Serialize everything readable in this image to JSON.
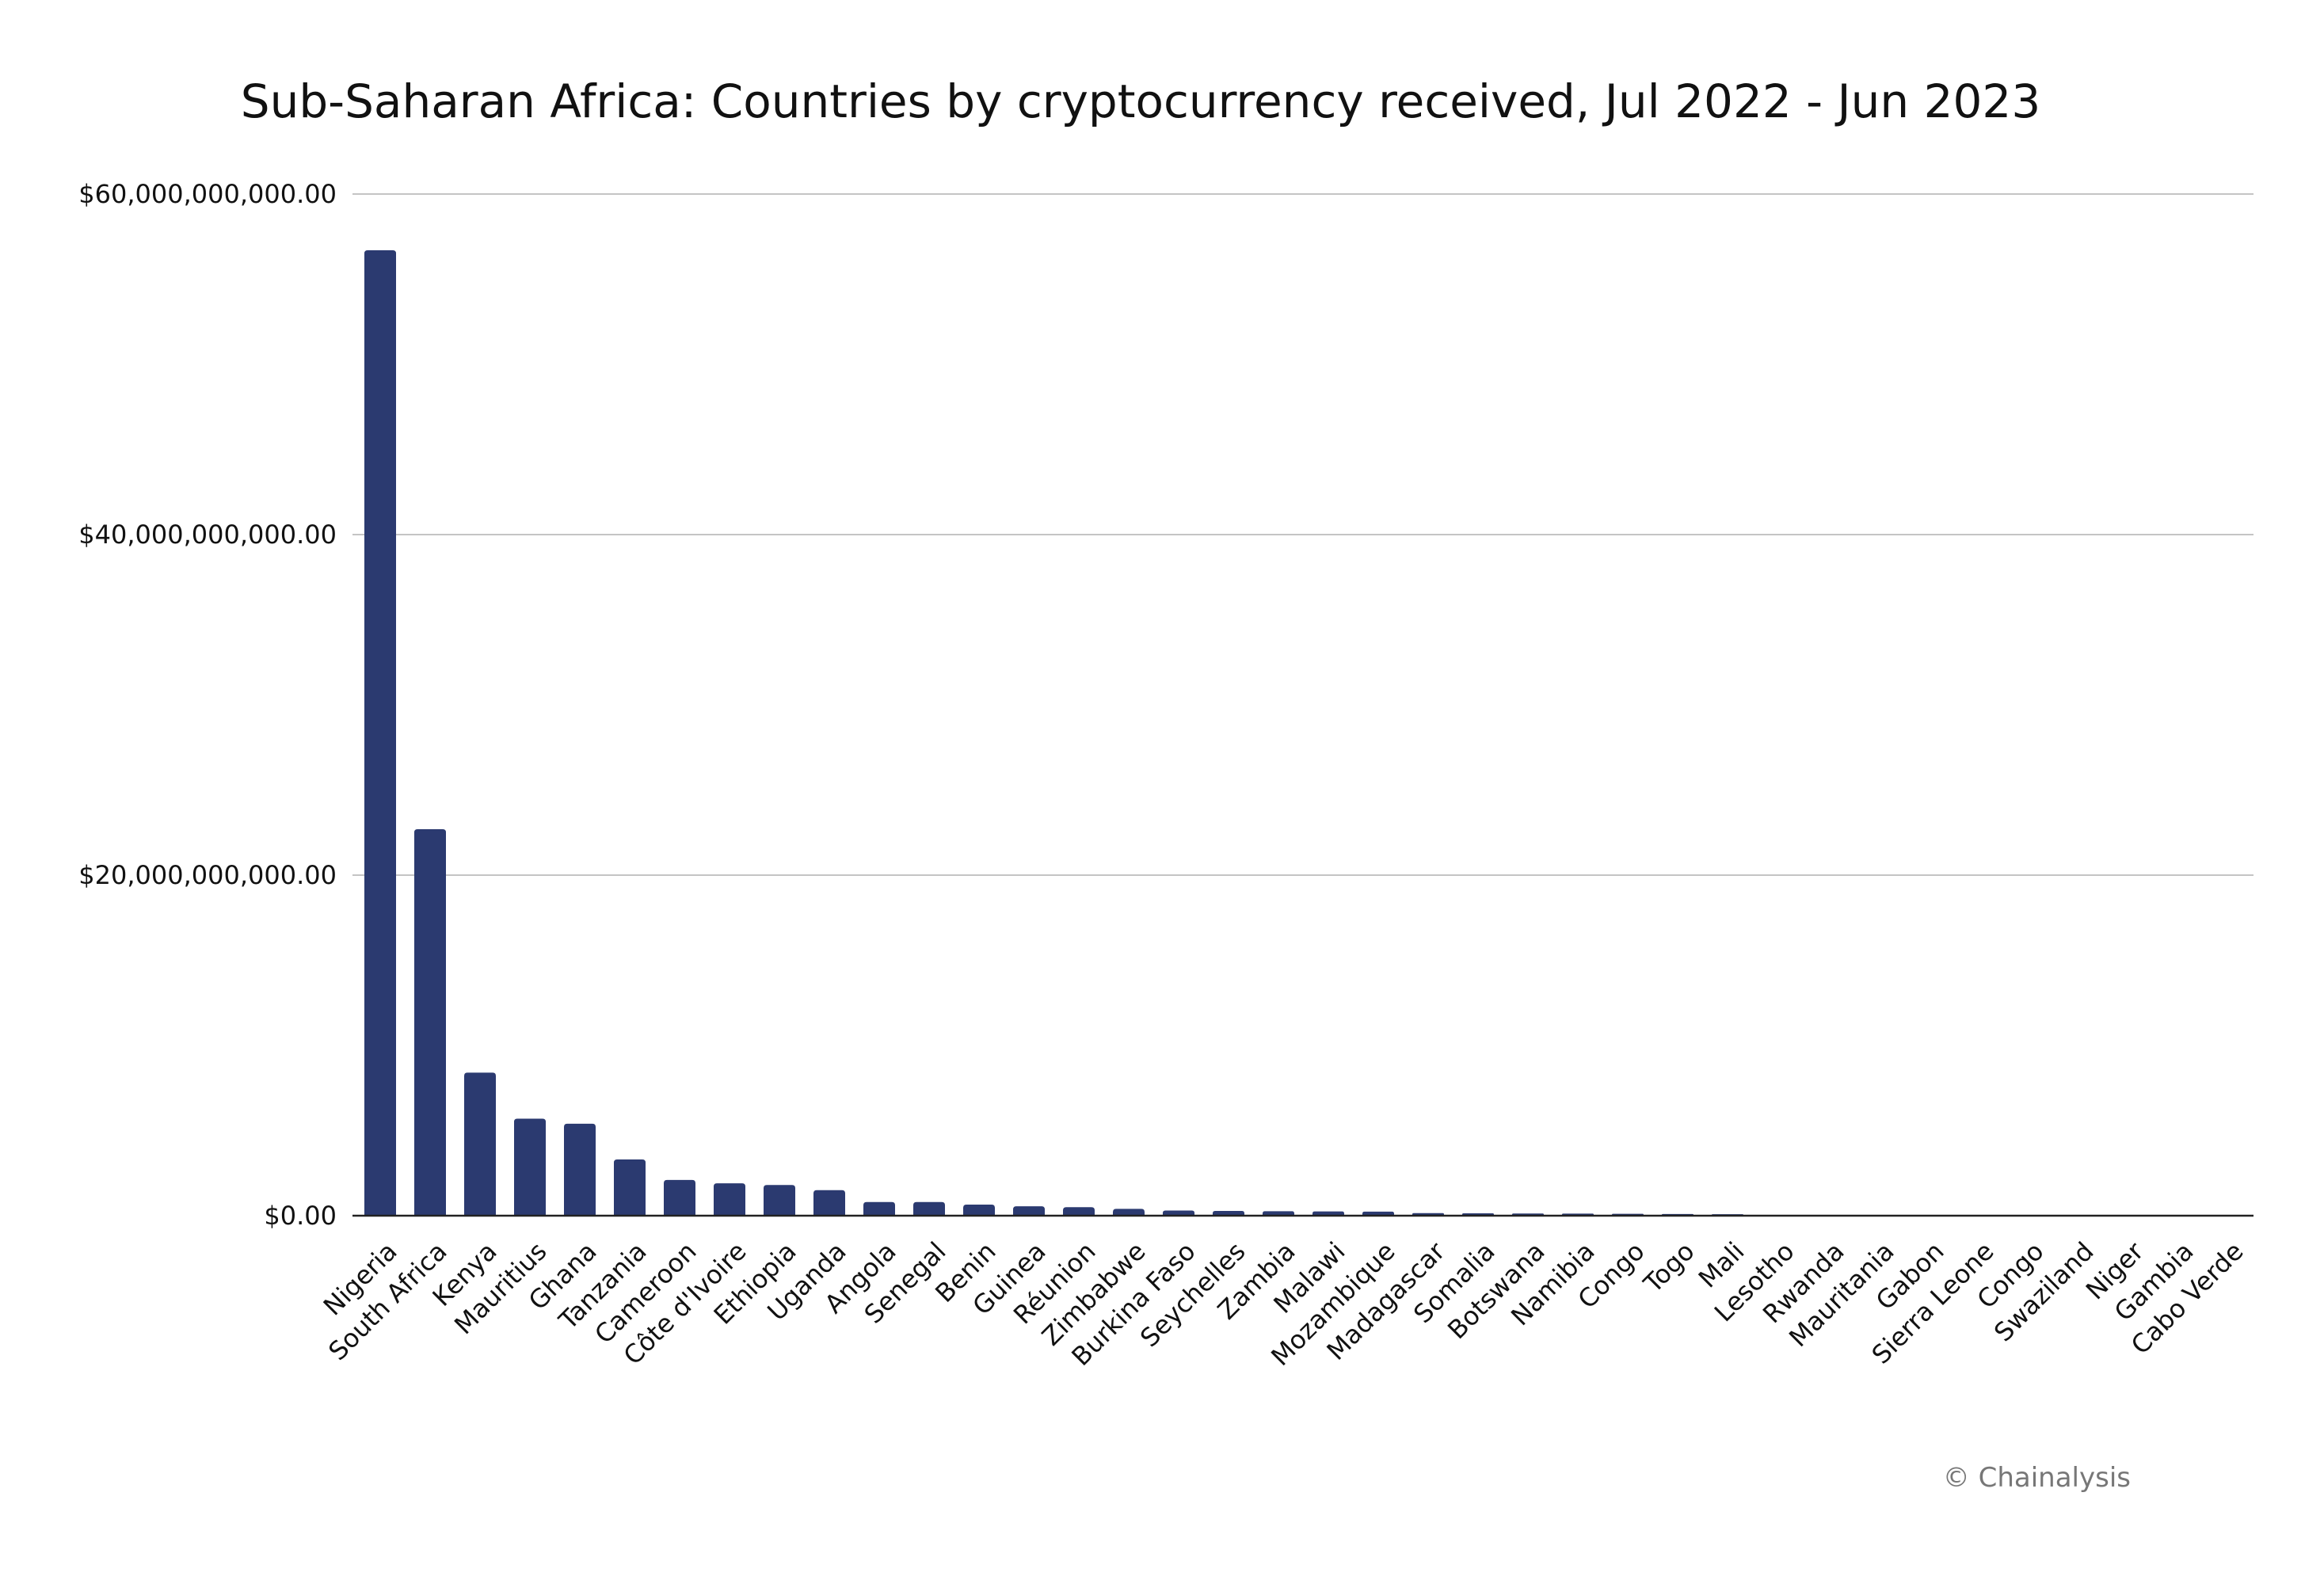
{
  "chart_data": {
    "type": "bar",
    "title": "Sub-Saharan Africa: Countries by cryptocurrency received, Jul 2022 - Jun 2023",
    "xlabel": "",
    "ylabel": "",
    "ylim": [
      0,
      60000000000
    ],
    "yticks": [
      0,
      20000000000,
      40000000000,
      60000000000
    ],
    "ytick_labels": [
      "$0.00",
      "$20,000,000,000.00",
      "$40,000,000,000.00",
      "$60,000,000,000.00"
    ],
    "grid": true,
    "legend": "none",
    "bar_color": "#2b3a70",
    "categories": [
      "Nigeria",
      "South Africa",
      "Kenya",
      "Mauritius",
      "Ghana",
      "Tanzania",
      "Cameroon",
      "Côte d'Ivoire",
      "Ethiopia",
      "Uganda",
      "Angola",
      "Senegal",
      "Benin",
      "Guinea",
      "Réunion",
      "Zimbabwe",
      "Burkina Faso",
      "Seychelles",
      "Zambia",
      "Malawi",
      "Mozambique",
      "Madagascar",
      "Somalia",
      "Botswana",
      "Namibia",
      "Congo",
      "Togo",
      "Mali",
      "Lesotho",
      "Rwanda",
      "Mauritania",
      "Gabon",
      "Sierra Leone",
      "Congo",
      "Swaziland",
      "Niger",
      "Gambia",
      "Cabo Verde"
    ],
    "values": [
      56700000000,
      22700000000,
      8400000000,
      5700000000,
      5400000000,
      3300000000,
      2100000000,
      1900000000,
      1800000000,
      1500000000,
      800000000,
      800000000,
      650000000,
      550000000,
      500000000,
      400000000,
      300000000,
      280000000,
      260000000,
      250000000,
      240000000,
      150000000,
      140000000,
      130000000,
      120000000,
      110000000,
      100000000,
      90000000,
      0,
      0,
      0,
      0,
      0,
      0,
      0,
      0,
      0,
      0
    ]
  },
  "credit": "© Chainalysis"
}
